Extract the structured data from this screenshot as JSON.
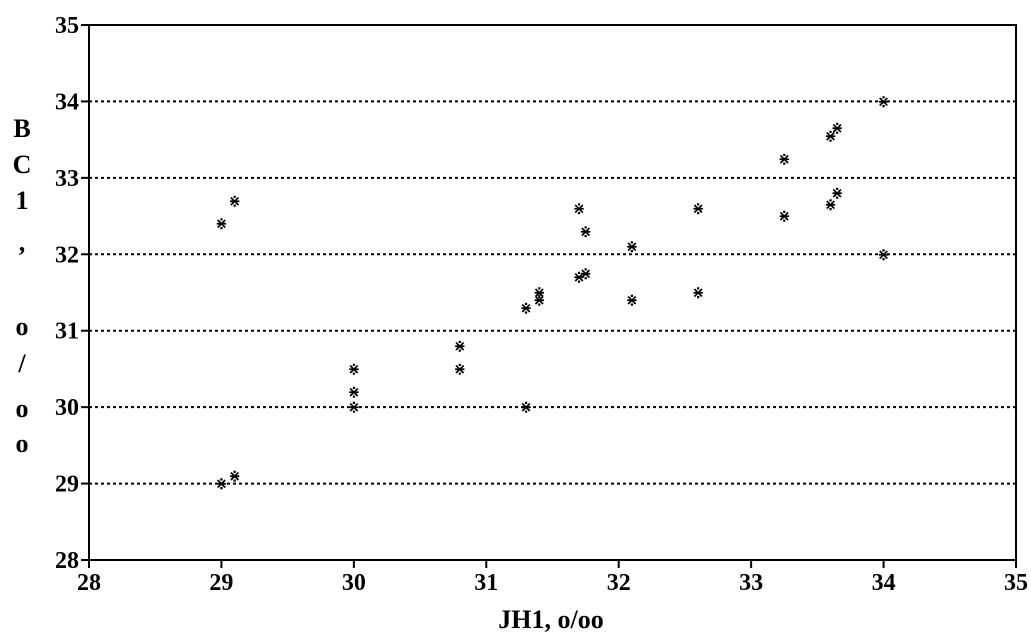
{
  "chart_data": {
    "type": "scatter",
    "xlabel": "JH1, o/oo",
    "ylabel_chars": [
      "B",
      "C",
      "1",
      ",",
      "o",
      "/",
      "o",
      "o"
    ],
    "xlim": [
      28,
      35
    ],
    "ylim": [
      28,
      35
    ],
    "x_ticks": [
      "28",
      "29",
      "30",
      "31",
      "32",
      "33",
      "34",
      "35"
    ],
    "y_ticks": [
      "28",
      "29",
      "30",
      "31",
      "32",
      "33",
      "34",
      "35"
    ],
    "grid": "horizontal-dotted",
    "marker_glyph": "⋇",
    "points": [
      {
        "x": 29.0,
        "y": 32.4
      },
      {
        "x": 29.1,
        "y": 32.7
      },
      {
        "x": 29.0,
        "y": 29.0
      },
      {
        "x": 29.1,
        "y": 29.1
      },
      {
        "x": 30.0,
        "y": 30.5
      },
      {
        "x": 30.0,
        "y": 30.2
      },
      {
        "x": 30.0,
        "y": 30.0
      },
      {
        "x": 30.8,
        "y": 30.8
      },
      {
        "x": 30.8,
        "y": 30.5
      },
      {
        "x": 31.3,
        "y": 31.3
      },
      {
        "x": 31.4,
        "y": 31.5
      },
      {
        "x": 31.4,
        "y": 31.4
      },
      {
        "x": 31.3,
        "y": 30.0
      },
      {
        "x": 31.7,
        "y": 32.6
      },
      {
        "x": 31.75,
        "y": 32.3
      },
      {
        "x": 31.7,
        "y": 31.7
      },
      {
        "x": 31.75,
        "y": 31.75
      },
      {
        "x": 32.1,
        "y": 32.1
      },
      {
        "x": 32.1,
        "y": 31.4
      },
      {
        "x": 32.6,
        "y": 32.6
      },
      {
        "x": 32.6,
        "y": 31.5
      },
      {
        "x": 33.25,
        "y": 33.25
      },
      {
        "x": 33.25,
        "y": 32.5
      },
      {
        "x": 33.6,
        "y": 33.55
      },
      {
        "x": 33.65,
        "y": 33.65
      },
      {
        "x": 33.6,
        "y": 32.65
      },
      {
        "x": 33.65,
        "y": 32.8
      },
      {
        "x": 34.0,
        "y": 34.0
      },
      {
        "x": 34.0,
        "y": 32.0
      }
    ]
  }
}
